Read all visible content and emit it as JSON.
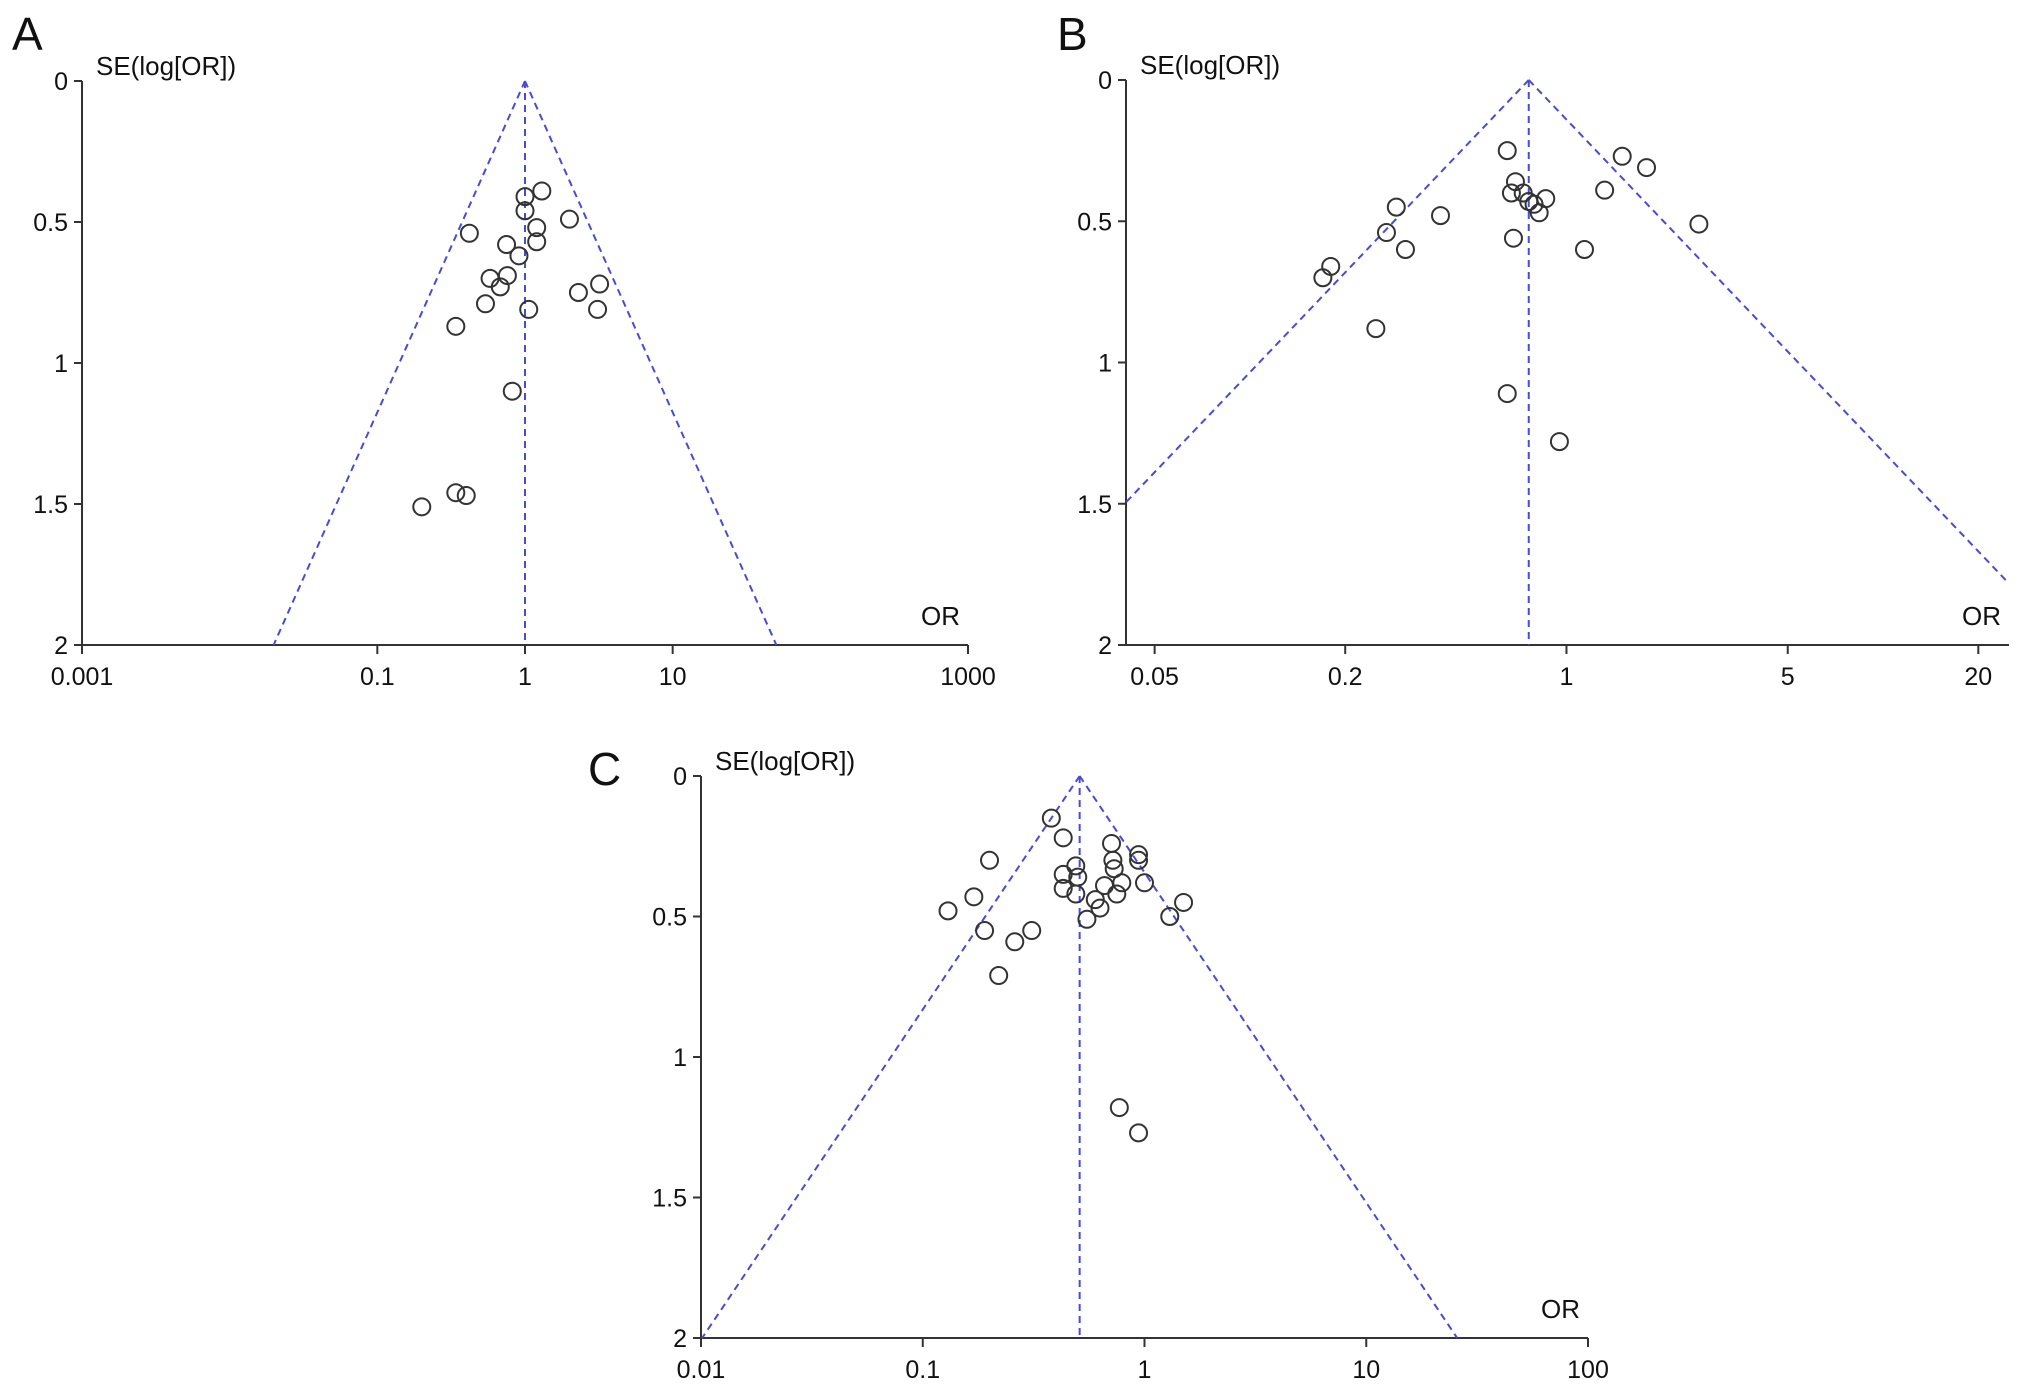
{
  "colors": {
    "funnel": "#4a4ad8",
    "axis": "#333333",
    "point": "#333333"
  },
  "chart_data": [
    {
      "panel": "A",
      "type": "scatter",
      "title": "",
      "ylabel": "SE(log[OR])",
      "xlabel": "OR",
      "xscale": "log",
      "xlim": [
        0.001,
        1000
      ],
      "ylim": [
        0,
        2
      ],
      "y_inverted": true,
      "xticks": [
        "0.001",
        "0.1",
        "1",
        "10",
        "1000"
      ],
      "yticks": [
        "0",
        "0.5",
        "1",
        "1.5",
        "2"
      ],
      "pooled_or": 1.0,
      "points": [
        [
          1.0,
          0.41
        ],
        [
          1.3,
          0.39
        ],
        [
          1.0,
          0.46
        ],
        [
          2.0,
          0.49
        ],
        [
          0.42,
          0.54
        ],
        [
          1.2,
          0.52
        ],
        [
          1.2,
          0.57
        ],
        [
          0.75,
          0.58
        ],
        [
          0.91,
          0.62
        ],
        [
          0.76,
          0.69
        ],
        [
          0.58,
          0.7
        ],
        [
          0.68,
          0.73
        ],
        [
          3.2,
          0.72
        ],
        [
          2.3,
          0.75
        ],
        [
          0.54,
          0.79
        ],
        [
          1.06,
          0.81
        ],
        [
          3.1,
          0.81
        ],
        [
          0.34,
          0.87
        ],
        [
          0.82,
          1.1
        ],
        [
          0.34,
          1.46
        ],
        [
          0.4,
          1.47
        ],
        [
          0.2,
          1.51
        ]
      ]
    },
    {
      "panel": "B",
      "type": "scatter",
      "title": "",
      "ylabel": "SE(log[OR])",
      "xlabel": "OR",
      "xscale": "log",
      "xlim": [
        0.0406,
        25
      ],
      "ylim": [
        0,
        2
      ],
      "y_inverted": true,
      "xticks": [
        "0.05",
        "0.2",
        "1",
        "5",
        "20"
      ],
      "yticks": [
        "0",
        "0.5",
        "1",
        "1.5",
        "2"
      ],
      "pooled_or": 0.76,
      "points": [
        [
          0.65,
          0.25
        ],
        [
          1.5,
          0.27
        ],
        [
          1.79,
          0.31
        ],
        [
          0.69,
          0.36
        ],
        [
          0.67,
          0.4
        ],
        [
          0.73,
          0.4
        ],
        [
          0.76,
          0.43
        ],
        [
          0.79,
          0.44
        ],
        [
          0.86,
          0.42
        ],
        [
          0.82,
          0.47
        ],
        [
          1.32,
          0.39
        ],
        [
          0.29,
          0.45
        ],
        [
          0.4,
          0.48
        ],
        [
          0.27,
          0.54
        ],
        [
          0.31,
          0.6
        ],
        [
          0.68,
          0.56
        ],
        [
          1.14,
          0.6
        ],
        [
          2.62,
          0.51
        ],
        [
          0.18,
          0.66
        ],
        [
          0.17,
          0.7
        ],
        [
          0.25,
          0.88
        ],
        [
          0.65,
          1.11
        ],
        [
          0.95,
          1.28
        ]
      ]
    },
    {
      "panel": "C",
      "type": "scatter",
      "title": "",
      "ylabel": "SE(log[OR])",
      "xlabel": "OR",
      "xscale": "log",
      "xlim": [
        0.01,
        100
      ],
      "ylim": [
        0,
        2
      ],
      "y_inverted": true,
      "xticks": [
        "0.01",
        "0.1",
        "1",
        "10",
        "100"
      ],
      "yticks": [
        "0",
        "0.5",
        "1",
        "1.5",
        "2"
      ],
      "pooled_or": 0.51,
      "points": [
        [
          0.38,
          0.15
        ],
        [
          0.43,
          0.22
        ],
        [
          0.71,
          0.24
        ],
        [
          0.94,
          0.28
        ],
        [
          0.94,
          0.3
        ],
        [
          0.72,
          0.3
        ],
        [
          0.73,
          0.33
        ],
        [
          0.2,
          0.3
        ],
        [
          0.49,
          0.32
        ],
        [
          0.43,
          0.35
        ],
        [
          0.5,
          0.36
        ],
        [
          0.66,
          0.39
        ],
        [
          0.79,
          0.38
        ],
        [
          1.0,
          0.38
        ],
        [
          0.43,
          0.4
        ],
        [
          0.49,
          0.42
        ],
        [
          0.75,
          0.42
        ],
        [
          0.17,
          0.43
        ],
        [
          0.6,
          0.44
        ],
        [
          0.63,
          0.47
        ],
        [
          1.5,
          0.45
        ],
        [
          0.13,
          0.48
        ],
        [
          1.3,
          0.5
        ],
        [
          0.55,
          0.51
        ],
        [
          0.19,
          0.55
        ],
        [
          0.31,
          0.55
        ],
        [
          0.26,
          0.59
        ],
        [
          0.22,
          0.71
        ],
        [
          0.77,
          1.18
        ],
        [
          0.94,
          1.27
        ]
      ]
    }
  ]
}
